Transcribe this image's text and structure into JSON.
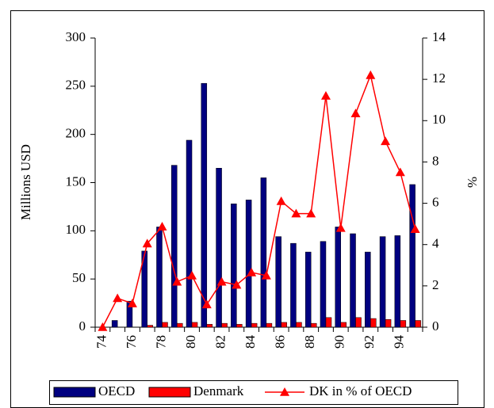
{
  "chart_data": {
    "type": "bar-line",
    "categories": [
      "74",
      null,
      "76",
      null,
      "78",
      null,
      "80",
      null,
      "82",
      null,
      "84",
      null,
      "86",
      null,
      "88",
      null,
      "90",
      null,
      "92",
      null,
      "94",
      null
    ],
    "series": [
      {
        "name": "OECD",
        "type": "bar",
        "color": "#000080",
        "values": [
          0,
          7,
          27,
          79,
          104,
          168,
          194,
          253,
          165,
          128,
          132,
          155,
          94,
          87,
          78,
          89,
          104,
          97,
          78,
          94,
          95,
          148
        ]
      },
      {
        "name": "Denmark",
        "type": "bar",
        "color": "#ff0000",
        "values": [
          0,
          0,
          0,
          2,
          5,
          4,
          5,
          3,
          4,
          3,
          4,
          4,
          5,
          5,
          4,
          10,
          5,
          10,
          9,
          8,
          7,
          7
        ]
      },
      {
        "name": "DK in % of OECD",
        "type": "line",
        "axis": "y2",
        "color": "#ff0000",
        "values": [
          0,
          1.4,
          1.15,
          4.05,
          4.87,
          2.2,
          2.5,
          1.1,
          2.2,
          2.05,
          2.65,
          2.5,
          6.1,
          5.5,
          5.5,
          11.2,
          4.8,
          10.35,
          12.2,
          9.0,
          7.5,
          4.75
        ]
      }
    ],
    "ylabel": "Millions USD",
    "y2label": "%",
    "ylim": [
      0,
      300
    ],
    "yticks": [
      0,
      50,
      100,
      150,
      200,
      250,
      300
    ],
    "y2lim": [
      0,
      14
    ],
    "y2ticks": [
      0,
      2,
      4,
      6,
      8,
      10,
      12,
      14
    ],
    "legend": "bottom"
  }
}
